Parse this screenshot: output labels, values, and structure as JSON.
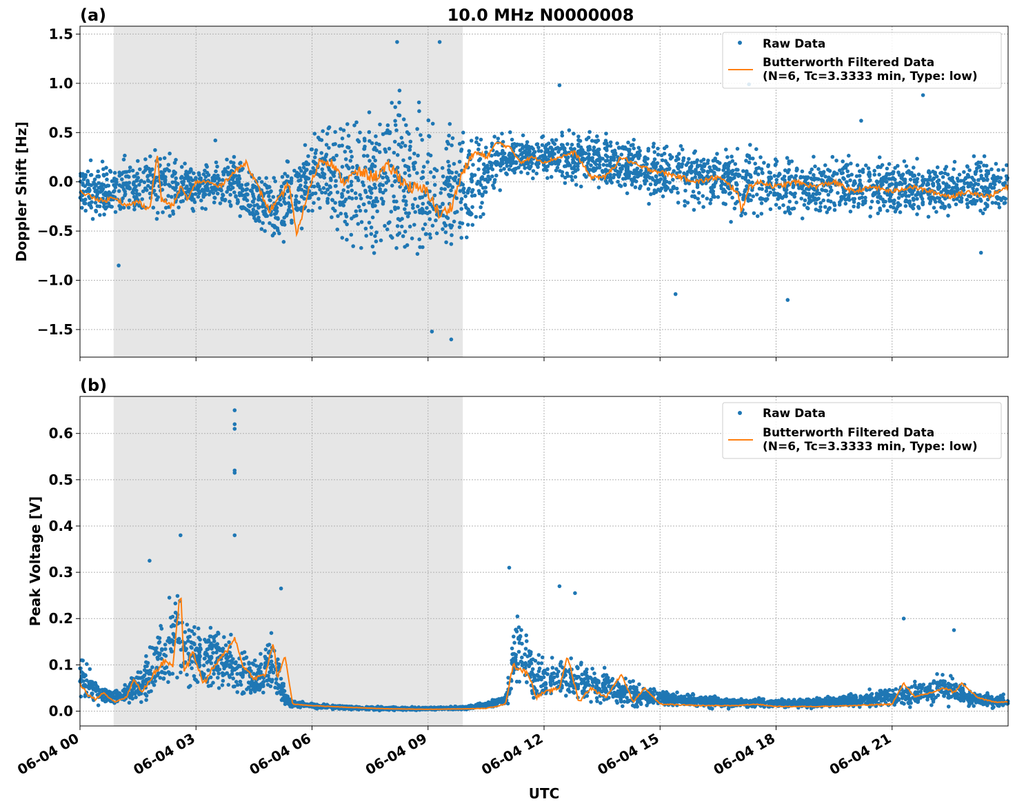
{
  "figure": {
    "title": "10.0 MHz N0000008",
    "xlabel": "UTC"
  },
  "colors": {
    "raw": "#1f77b4",
    "filtered": "#ff7f0e",
    "shade": "#e6e6e6",
    "grid": "#b0b0b0"
  },
  "chart_data": [
    {
      "type": "scatter",
      "panel_label": "(a)",
      "title": "10.0 MHz N0000008",
      "xlabel": "",
      "ylabel": "Doppler Shift [Hz]",
      "x_unit": "hours since 06-04 00:00 UTC",
      "xlim": [
        0,
        24
      ],
      "ylim": [
        -1.78,
        1.58
      ],
      "yticks": [
        -1.5,
        -1.0,
        -0.5,
        0.0,
        0.5,
        1.0,
        1.5
      ],
      "ytick_labels": [
        "−1.5",
        "−1.0",
        "−0.5",
        "0.0",
        "0.5",
        "1.0",
        "1.5"
      ],
      "grid": true,
      "legend_position": "upper right",
      "shaded_interval_hours": [
        0.87,
        9.9
      ],
      "series": [
        {
          "name": "Raw Data",
          "style": "dots",
          "envelope_hours": [
            0,
            1,
            2,
            3,
            4,
            5,
            6,
            7,
            8,
            9,
            10,
            11,
            12,
            13,
            14,
            15,
            16,
            17,
            18,
            19,
            20,
            21,
            22,
            23,
            24
          ],
          "envelope_upper": [
            0.25,
            0.3,
            0.45,
            0.25,
            0.35,
            0.2,
            0.6,
            0.9,
            1.1,
            1.0,
            0.7,
            0.55,
            0.5,
            0.6,
            0.55,
            0.45,
            0.5,
            0.45,
            0.4,
            0.35,
            0.35,
            0.3,
            0.3,
            0.35,
            0.3
          ],
          "envelope_lower": [
            -0.4,
            -0.5,
            -0.5,
            -0.35,
            -0.4,
            -0.8,
            -0.5,
            -0.9,
            -1.1,
            -1.2,
            -0.8,
            -0.05,
            0.0,
            -0.1,
            -0.2,
            -0.3,
            -0.35,
            -0.45,
            -0.45,
            -0.45,
            -0.4,
            -0.4,
            -0.45,
            -0.45,
            -0.4
          ],
          "outliers": [
            [
              1.0,
              -0.85
            ],
            [
              3.5,
              0.42
            ],
            [
              8.2,
              1.42
            ],
            [
              9.3,
              1.42
            ],
            [
              9.6,
              -1.6
            ],
            [
              9.1,
              -1.52
            ],
            [
              15.4,
              -1.14
            ],
            [
              17.3,
              0.99
            ],
            [
              18.3,
              -1.2
            ],
            [
              23.3,
              -0.72
            ],
            [
              12.4,
              0.98
            ],
            [
              20.2,
              0.62
            ],
            [
              21.8,
              0.88
            ]
          ]
        },
        {
          "name": "Butterworth Filtered Data\n(N=6, Tc=3.3333 min, Type: low)",
          "style": "line",
          "x": [
            0,
            0.3,
            0.6,
            0.9,
            1.2,
            1.5,
            1.8,
            2.0,
            2.1,
            2.2,
            2.4,
            2.6,
            2.8,
            3.0,
            3.3,
            3.6,
            4.0,
            4.3,
            4.6,
            4.9,
            5.2,
            5.4,
            5.6,
            5.9,
            6.2,
            6.5,
            6.8,
            7.2,
            7.6,
            8.0,
            8.5,
            9.0,
            9.3,
            9.6,
            9.9,
            10.2,
            10.5,
            10.8,
            11.1,
            11.4,
            11.7,
            12.0,
            12.4,
            12.8,
            13.2,
            13.6,
            14.0,
            14.5,
            15.0,
            15.5,
            16.0,
            16.5,
            17.0,
            17.1,
            17.3,
            17.6,
            18.0,
            18.5,
            19.0,
            19.5,
            20.0,
            20.5,
            21.0,
            21.5,
            22.0,
            22.5,
            23.0,
            23.5,
            24.0
          ],
          "y": [
            -0.1,
            -0.15,
            -0.2,
            -0.15,
            -0.25,
            -0.2,
            -0.28,
            0.28,
            -0.18,
            -0.2,
            -0.25,
            -0.05,
            -0.18,
            0.0,
            0.0,
            -0.05,
            0.1,
            0.2,
            -0.05,
            -0.3,
            -0.15,
            0.0,
            -0.55,
            -0.1,
            0.22,
            0.2,
            0.0,
            0.1,
            0.05,
            0.15,
            -0.05,
            -0.1,
            -0.35,
            -0.25,
            0.1,
            0.3,
            0.25,
            0.4,
            0.35,
            0.2,
            0.25,
            0.2,
            0.25,
            0.3,
            0.05,
            0.05,
            0.25,
            0.15,
            0.1,
            0.05,
            0.0,
            0.05,
            -0.1,
            -0.3,
            -0.05,
            0.0,
            -0.05,
            0.0,
            -0.05,
            0.0,
            -0.1,
            -0.05,
            -0.1,
            -0.05,
            -0.1,
            -0.15,
            -0.1,
            -0.15,
            -0.05
          ]
        }
      ]
    },
    {
      "type": "scatter",
      "panel_label": "(b)",
      "title": "",
      "xlabel": "UTC",
      "ylabel": "Peak Voltage [V]",
      "x_unit": "hours since 06-04 00:00 UTC",
      "xlim": [
        0,
        24
      ],
      "ylim": [
        -0.032,
        0.68
      ],
      "yticks": [
        0.0,
        0.1,
        0.2,
        0.3,
        0.4,
        0.5,
        0.6
      ],
      "ytick_labels": [
        "0.0",
        "0.1",
        "0.2",
        "0.3",
        "0.4",
        "0.5",
        "0.6"
      ],
      "xticks": [
        0,
        3,
        6,
        9,
        12,
        15,
        18,
        21
      ],
      "xtick_labels": [
        "06-04 00",
        "06-04 03",
        "06-04 06",
        "06-04 09",
        "06-04 12",
        "06-04 15",
        "06-04 18",
        "06-04 21"
      ],
      "grid": true,
      "legend_position": "upper right",
      "shaded_interval_hours": [
        0.87,
        9.9
      ],
      "series": [
        {
          "name": "Raw Data",
          "style": "dots",
          "envelope_hours": [
            0,
            0.5,
            1,
            1.5,
            2,
            2.5,
            3,
            3.5,
            4,
            4.5,
            5,
            5.3,
            5.5,
            6,
            7,
            8,
            9,
            10,
            10.5,
            11,
            11.3,
            11.6,
            12,
            12.5,
            13,
            14,
            15,
            16,
            17,
            18,
            19,
            20,
            21,
            22,
            22.5,
            23,
            24
          ],
          "envelope_upper": [
            0.15,
            0.06,
            0.05,
            0.1,
            0.2,
            0.33,
            0.2,
            0.22,
            0.18,
            0.12,
            0.2,
            0.05,
            0.025,
            0.02,
            0.012,
            0.01,
            0.01,
            0.012,
            0.025,
            0.04,
            0.25,
            0.18,
            0.12,
            0.14,
            0.12,
            0.08,
            0.05,
            0.04,
            0.03,
            0.03,
            0.03,
            0.04,
            0.06,
            0.08,
            0.1,
            0.05,
            0.04
          ],
          "envelope_lower": [
            0.01,
            0.01,
            0.01,
            0.01,
            0.01,
            0.02,
            0.02,
            0.02,
            0.015,
            0.01,
            0.01,
            0.008,
            0.006,
            0.004,
            0.002,
            0.001,
            0.001,
            0.002,
            0.004,
            0.006,
            0.03,
            0.02,
            0.01,
            0.008,
            0.006,
            0.005,
            0.005,
            0.004,
            0.004,
            0.004,
            0.004,
            0.004,
            0.004,
            0.004,
            0.004,
            0.004,
            0.004
          ],
          "outliers": [
            [
              4.0,
              0.65
            ],
            [
              4.0,
              0.62
            ],
            [
              4.0,
              0.61
            ],
            [
              4.0,
              0.52
            ],
            [
              4.0,
              0.515
            ],
            [
              4.0,
              0.38
            ],
            [
              2.6,
              0.38
            ],
            [
              1.8,
              0.325
            ],
            [
              11.1,
              0.31
            ],
            [
              21.3,
              0.2
            ],
            [
              22.6,
              0.175
            ],
            [
              5.2,
              0.265
            ],
            [
              12.4,
              0.27
            ],
            [
              12.8,
              0.255
            ]
          ]
        },
        {
          "name": "Butterworth Filtered Data\n(N=6, Tc=3.3333 min, Type: low)",
          "style": "line",
          "x": [
            0,
            0.2,
            0.4,
            0.6,
            0.9,
            1.2,
            1.4,
            1.6,
            1.9,
            2.2,
            2.4,
            2.6,
            2.7,
            2.9,
            3.2,
            3.5,
            3.8,
            4.0,
            4.2,
            4.5,
            4.8,
            5.0,
            5.1,
            5.3,
            5.5,
            6.0,
            6.5,
            7.0,
            8.0,
            9.0,
            10.0,
            10.5,
            11.0,
            11.2,
            11.4,
            11.6,
            11.8,
            12.0,
            12.4,
            12.6,
            12.9,
            13.2,
            13.6,
            14.0,
            14.3,
            14.6,
            15.0,
            16.0,
            17.0,
            17.5,
            18.0,
            19.0,
            20.0,
            21.0,
            21.3,
            21.6,
            22.0,
            22.4,
            22.6,
            22.8,
            23.2,
            23.6,
            24.0
          ],
          "y": [
            0.06,
            0.035,
            0.025,
            0.04,
            0.02,
            0.03,
            0.07,
            0.04,
            0.08,
            0.11,
            0.1,
            0.26,
            0.08,
            0.13,
            0.06,
            0.1,
            0.13,
            0.16,
            0.1,
            0.07,
            0.08,
            0.15,
            0.07,
            0.12,
            0.015,
            0.012,
            0.01,
            0.008,
            0.005,
            0.004,
            0.005,
            0.006,
            0.015,
            0.1,
            0.09,
            0.08,
            0.03,
            0.04,
            0.05,
            0.12,
            0.02,
            0.05,
            0.03,
            0.08,
            0.02,
            0.05,
            0.015,
            0.012,
            0.012,
            0.015,
            0.01,
            0.01,
            0.012,
            0.015,
            0.06,
            0.03,
            0.04,
            0.05,
            0.04,
            0.06,
            0.03,
            0.02,
            0.02
          ]
        }
      ]
    }
  ]
}
